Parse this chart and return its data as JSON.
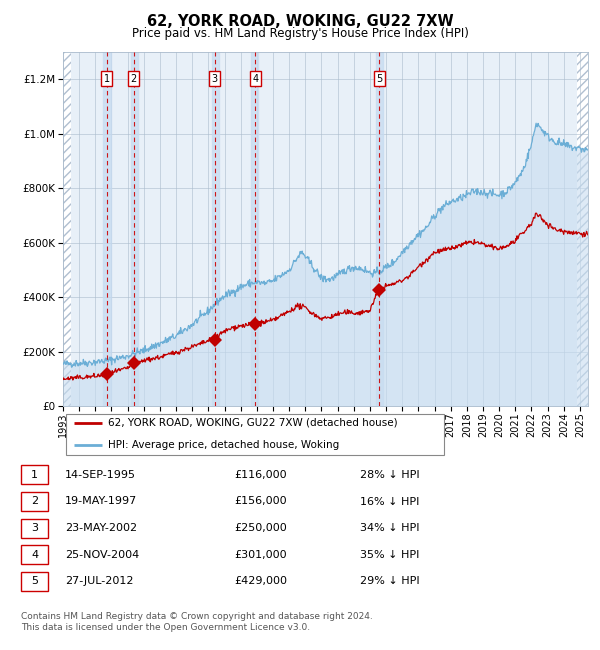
{
  "title": "62, YORK ROAD, WOKING, GU22 7XW",
  "subtitle": "Price paid vs. HM Land Registry's House Price Index (HPI)",
  "transactions": [
    {
      "num": 1,
      "date": "14-SEP-1995",
      "year": 1995.71,
      "price": 116000,
      "pct": "28%"
    },
    {
      "num": 2,
      "date": "19-MAY-1997",
      "year": 1997.38,
      "price": 156000,
      "pct": "16%"
    },
    {
      "num": 3,
      "date": "23-MAY-2002",
      "year": 2002.39,
      "price": 250000,
      "pct": "34%"
    },
    {
      "num": 4,
      "date": "25-NOV-2004",
      "year": 2004.9,
      "price": 301000,
      "pct": "35%"
    },
    {
      "num": 5,
      "date": "27-JUL-2012",
      "year": 2012.57,
      "price": 429000,
      "pct": "29%"
    }
  ],
  "hpi_color": "#6baed6",
  "price_color": "#c00000",
  "background_color": "#e8f0f8",
  "grid_color": "#aabbcc",
  "ylim": [
    0,
    1300000
  ],
  "yticks": [
    0,
    200000,
    400000,
    600000,
    800000,
    1000000,
    1200000
  ],
  "xlim_start": 1993.0,
  "xlim_end": 2025.5,
  "xticks": [
    1993,
    1994,
    1995,
    1996,
    1997,
    1998,
    1999,
    2000,
    2001,
    2002,
    2003,
    2004,
    2005,
    2006,
    2007,
    2008,
    2009,
    2010,
    2011,
    2012,
    2013,
    2014,
    2015,
    2016,
    2017,
    2018,
    2019,
    2020,
    2021,
    2022,
    2023,
    2024,
    2025
  ],
  "footnote": "Contains HM Land Registry data © Crown copyright and database right 2024.\nThis data is licensed under the Open Government Licence v3.0.",
  "legend_property": "62, YORK ROAD, WOKING, GU22 7XW (detached house)",
  "legend_hpi": "HPI: Average price, detached house, Woking",
  "hpi_anchors": [
    [
      1993.0,
      155000
    ],
    [
      1994.0,
      158000
    ],
    [
      1995.0,
      162000
    ],
    [
      1996.0,
      170000
    ],
    [
      1997.0,
      185000
    ],
    [
      1998.0,
      205000
    ],
    [
      1999.0,
      230000
    ],
    [
      2000.0,
      258000
    ],
    [
      2001.0,
      300000
    ],
    [
      2002.0,
      350000
    ],
    [
      2002.5,
      380000
    ],
    [
      2003.0,
      405000
    ],
    [
      2003.5,
      420000
    ],
    [
      2004.0,
      438000
    ],
    [
      2004.5,
      450000
    ],
    [
      2005.0,
      455000
    ],
    [
      2005.5,
      450000
    ],
    [
      2006.0,
      460000
    ],
    [
      2007.0,
      500000
    ],
    [
      2007.5,
      545000
    ],
    [
      2007.8,
      565000
    ],
    [
      2008.5,
      510000
    ],
    [
      2009.0,
      470000
    ],
    [
      2009.5,
      465000
    ],
    [
      2010.0,
      480000
    ],
    [
      2010.5,
      500000
    ],
    [
      2011.0,
      510000
    ],
    [
      2011.5,
      505000
    ],
    [
      2012.0,
      490000
    ],
    [
      2012.5,
      490000
    ],
    [
      2013.0,
      510000
    ],
    [
      2013.5,
      530000
    ],
    [
      2014.0,
      565000
    ],
    [
      2014.5,
      600000
    ],
    [
      2015.0,
      630000
    ],
    [
      2015.5,
      655000
    ],
    [
      2016.0,
      700000
    ],
    [
      2016.5,
      730000
    ],
    [
      2017.0,
      750000
    ],
    [
      2017.5,
      760000
    ],
    [
      2018.0,
      775000
    ],
    [
      2018.5,
      790000
    ],
    [
      2019.0,
      785000
    ],
    [
      2019.5,
      780000
    ],
    [
      2020.0,
      775000
    ],
    [
      2020.5,
      790000
    ],
    [
      2021.0,
      820000
    ],
    [
      2021.5,
      870000
    ],
    [
      2022.0,
      960000
    ],
    [
      2022.3,
      1040000
    ],
    [
      2022.6,
      1020000
    ],
    [
      2023.0,
      990000
    ],
    [
      2023.5,
      970000
    ],
    [
      2024.0,
      960000
    ],
    [
      2024.5,
      950000
    ],
    [
      2025.0,
      945000
    ],
    [
      2025.5,
      940000
    ]
  ],
  "price_anchors": [
    [
      1993.0,
      100000
    ],
    [
      1994.0,
      105000
    ],
    [
      1995.0,
      110000
    ],
    [
      1995.71,
      116000
    ],
    [
      1996.0,
      122000
    ],
    [
      1997.0,
      140000
    ],
    [
      1997.38,
      156000
    ],
    [
      1998.0,
      168000
    ],
    [
      1999.0,
      180000
    ],
    [
      2000.0,
      198000
    ],
    [
      2001.0,
      218000
    ],
    [
      2001.5,
      228000
    ],
    [
      2002.39,
      250000
    ],
    [
      2003.0,
      275000
    ],
    [
      2003.5,
      288000
    ],
    [
      2004.0,
      295000
    ],
    [
      2004.9,
      301000
    ],
    [
      2005.0,
      305000
    ],
    [
      2005.5,
      308000
    ],
    [
      2006.0,
      315000
    ],
    [
      2007.0,
      348000
    ],
    [
      2007.5,
      368000
    ],
    [
      2008.0,
      362000
    ],
    [
      2008.5,
      338000
    ],
    [
      2009.0,
      322000
    ],
    [
      2009.5,
      326000
    ],
    [
      2010.0,
      338000
    ],
    [
      2010.5,
      344000
    ],
    [
      2011.0,
      342000
    ],
    [
      2011.5,
      344000
    ],
    [
      2012.0,
      352000
    ],
    [
      2012.57,
      429000
    ],
    [
      2013.0,
      440000
    ],
    [
      2013.5,
      450000
    ],
    [
      2014.0,
      462000
    ],
    [
      2014.5,
      482000
    ],
    [
      2015.0,
      512000
    ],
    [
      2015.5,
      538000
    ],
    [
      2016.0,
      565000
    ],
    [
      2016.5,
      572000
    ],
    [
      2017.0,
      578000
    ],
    [
      2017.5,
      588000
    ],
    [
      2018.0,
      598000
    ],
    [
      2018.5,
      603000
    ],
    [
      2019.0,
      594000
    ],
    [
      2019.5,
      584000
    ],
    [
      2020.0,
      578000
    ],
    [
      2020.5,
      588000
    ],
    [
      2021.0,
      608000
    ],
    [
      2021.5,
      636000
    ],
    [
      2022.0,
      672000
    ],
    [
      2022.3,
      705000
    ],
    [
      2022.6,
      692000
    ],
    [
      2023.0,
      668000
    ],
    [
      2023.5,
      648000
    ],
    [
      2024.0,
      642000
    ],
    [
      2024.5,
      638000
    ],
    [
      2025.0,
      635000
    ],
    [
      2025.5,
      632000
    ]
  ]
}
